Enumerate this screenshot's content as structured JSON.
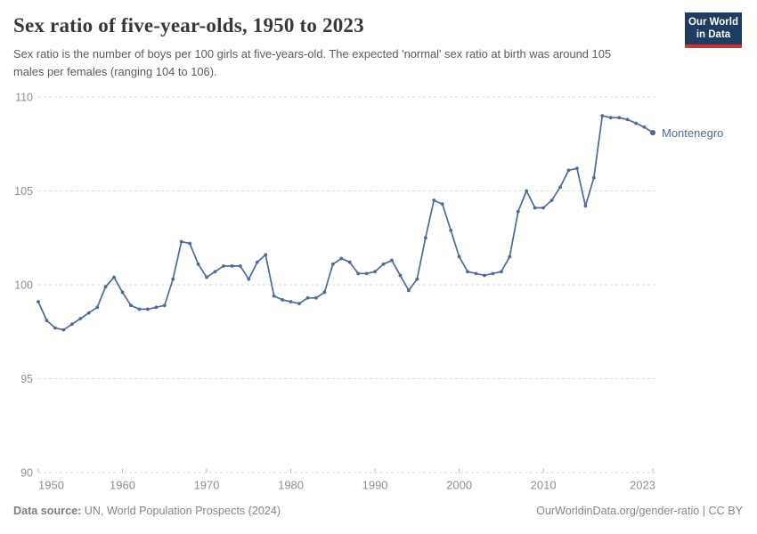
{
  "header": {
    "title": "Sex ratio of five-year-olds, 1950 to 2023",
    "subtitle": "Sex ratio is the number of boys per 100 girls at five-years-old. The expected 'normal' sex ratio at birth was around 105 males per females (ranging 104 to 106).",
    "logo": {
      "line1": "Our World",
      "line2": "in Data",
      "bg_color": "#1d3d63",
      "bar_color": "#c5383a"
    }
  },
  "chart_data": {
    "type": "line",
    "title": "Sex ratio of five-year-olds, 1950 to 2023",
    "xlabel": "",
    "ylabel": "",
    "x_start": 1950,
    "x_end": 2023,
    "ylim": [
      90,
      110
    ],
    "yticks": [
      90,
      95,
      100,
      105,
      110
    ],
    "xticks": [
      1950,
      1960,
      1970,
      1980,
      1990,
      2000,
      2010,
      2023
    ],
    "grid": "horizontal-dashed",
    "legend_position": "end-of-line-label",
    "colors": {
      "grid": "#d9d9d9",
      "tick": "#b8b8b8",
      "axis_text": "#8f8f8f"
    },
    "series": [
      {
        "name": "Montenegro",
        "color": "#4C6A9C",
        "x": [
          1950,
          1951,
          1952,
          1953,
          1954,
          1955,
          1956,
          1957,
          1958,
          1959,
          1960,
          1961,
          1962,
          1963,
          1964,
          1965,
          1966,
          1967,
          1968,
          1969,
          1970,
          1971,
          1972,
          1973,
          1974,
          1975,
          1976,
          1977,
          1978,
          1979,
          1980,
          1981,
          1982,
          1983,
          1984,
          1985,
          1986,
          1987,
          1988,
          1989,
          1990,
          1991,
          1992,
          1993,
          1994,
          1995,
          1996,
          1997,
          1998,
          1999,
          2000,
          2001,
          2002,
          2003,
          2004,
          2005,
          2006,
          2007,
          2008,
          2009,
          2010,
          2011,
          2012,
          2013,
          2014,
          2015,
          2016,
          2017,
          2018,
          2019,
          2020,
          2021,
          2022,
          2023
        ],
        "values": [
          99.1,
          98.1,
          97.7,
          97.6,
          97.9,
          98.2,
          98.5,
          98.8,
          99.9,
          100.4,
          99.6,
          98.9,
          98.7,
          98.7,
          98.8,
          98.9,
          100.3,
          102.3,
          102.2,
          101.1,
          100.4,
          100.7,
          101.0,
          101.0,
          101.0,
          100.3,
          101.2,
          101.6,
          99.4,
          99.2,
          99.1,
          99.0,
          99.3,
          99.3,
          99.6,
          101.1,
          101.4,
          101.2,
          100.6,
          100.6,
          100.7,
          101.1,
          101.3,
          100.5,
          99.7,
          100.3,
          102.5,
          104.5,
          104.3,
          102.9,
          101.5,
          100.7,
          100.6,
          100.5,
          100.6,
          100.7,
          101.5,
          103.9,
          105.0,
          104.1,
          104.1,
          104.5,
          105.2,
          106.1,
          106.2,
          104.2,
          105.7,
          109.0,
          108.9,
          108.9,
          108.8,
          108.6,
          108.4,
          108.1
        ]
      }
    ]
  },
  "footer": {
    "source_label": "Data source:",
    "source_text": "UN, World Population Prospects (2024)",
    "link_text": "OurWorldinData.org/gender-ratio | CC BY"
  }
}
